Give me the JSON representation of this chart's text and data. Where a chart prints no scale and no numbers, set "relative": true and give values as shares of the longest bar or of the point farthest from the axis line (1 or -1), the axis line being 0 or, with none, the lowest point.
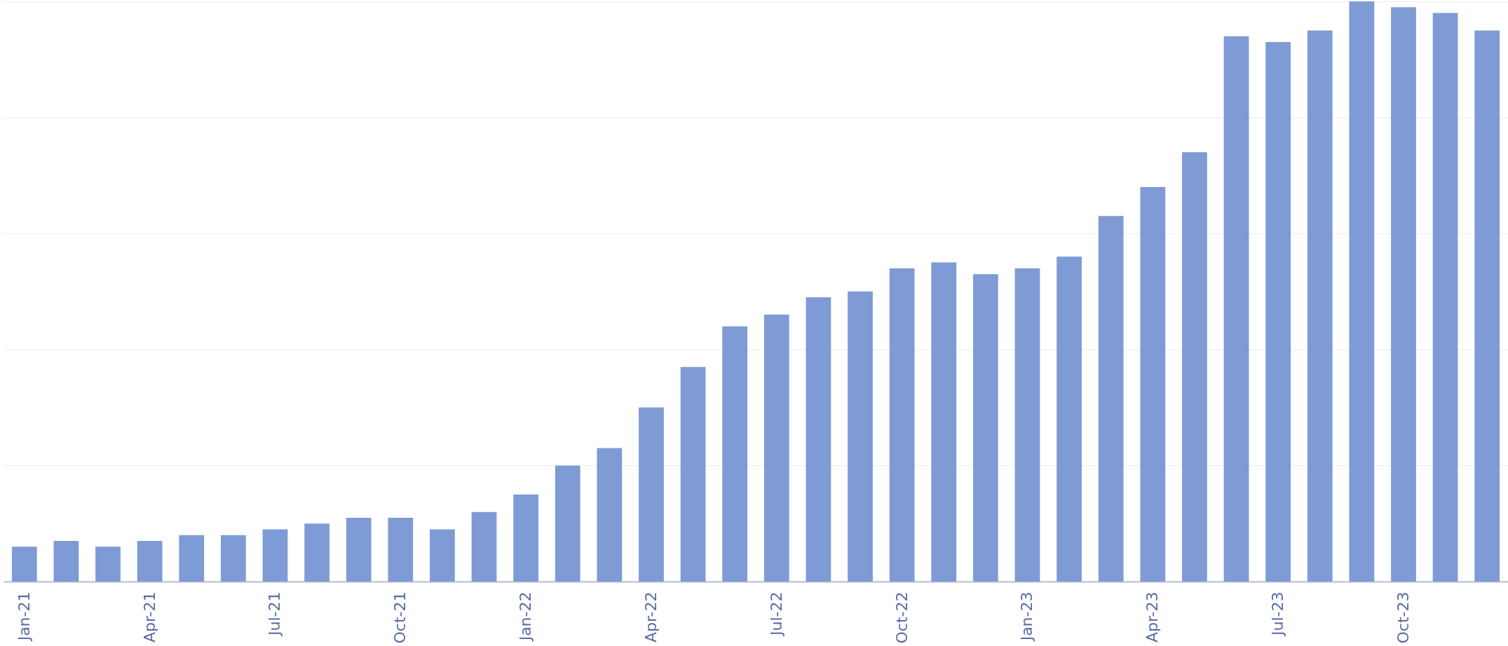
{
  "chart_data": {
    "type": "bar",
    "relative": true,
    "grid": "y",
    "color": "#7f9bd6",
    "categories": [
      "Jan-21",
      null,
      null,
      "Apr-21",
      null,
      null,
      "Jul-21",
      null,
      null,
      "Oct-21",
      null,
      null,
      "Jan-22",
      null,
      null,
      "Apr-22",
      null,
      null,
      "Jul-22",
      null,
      null,
      "Oct-22",
      null,
      null,
      "Jan-23",
      null,
      null,
      "Apr-23",
      null,
      null,
      "Jul-23",
      null,
      null,
      "Oct-23",
      null,
      null
    ],
    "values": [
      0.06,
      0.07,
      0.06,
      0.07,
      0.08,
      0.08,
      0.09,
      0.1,
      0.11,
      0.11,
      0.09,
      0.12,
      0.15,
      0.2,
      0.23,
      0.3,
      0.37,
      0.44,
      0.46,
      0.49,
      0.5,
      0.54,
      0.55,
      0.53,
      0.54,
      0.56,
      0.63,
      0.68,
      0.74,
      0.94,
      0.93,
      0.95,
      1,
      0.99,
      0.98,
      0.95
    ]
  }
}
